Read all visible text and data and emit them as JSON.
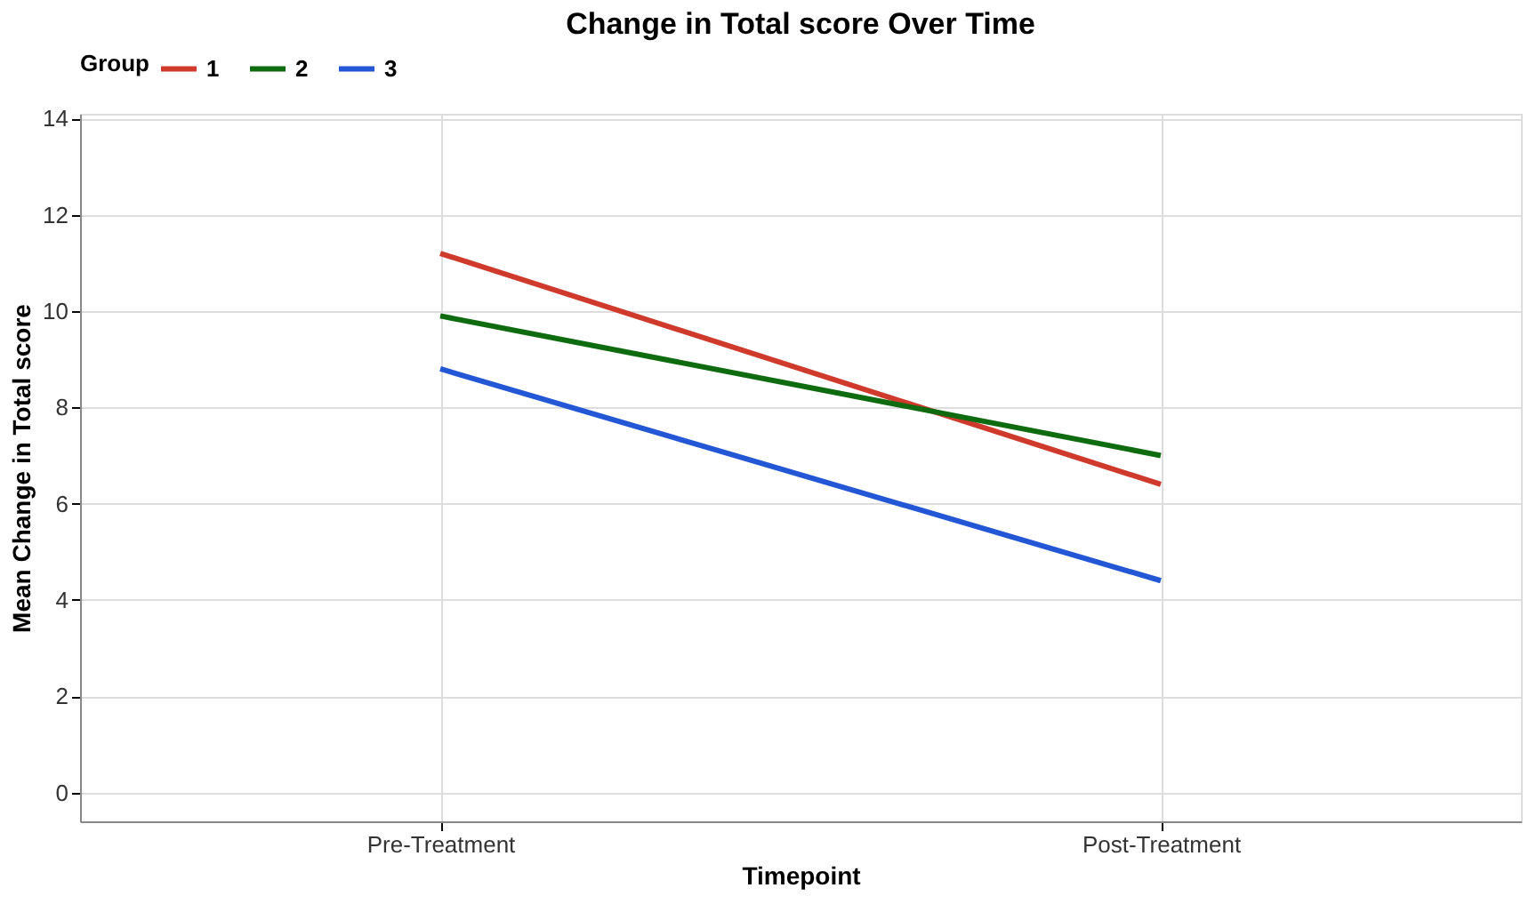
{
  "chart_data": {
    "type": "line",
    "title": "Change in Total score Over Time",
    "xlabel": "Timepoint",
    "ylabel": "Mean Change in Total score",
    "legend_title": "Group",
    "categories": [
      "Pre-Treatment",
      "Post-Treatment"
    ],
    "series": [
      {
        "name": "1",
        "color": "#d03a2c",
        "values": [
          11.2,
          6.4
        ]
      },
      {
        "name": "2",
        "color": "#0f6b0f",
        "values": [
          9.9,
          7.0
        ]
      },
      {
        "name": "3",
        "color": "#2457d6",
        "values": [
          8.8,
          4.4
        ]
      }
    ],
    "ylim": [
      -0.6,
      14.1
    ],
    "yticks": [
      0,
      2,
      4,
      6,
      8,
      10,
      12,
      14
    ],
    "grid": true,
    "legend": "top",
    "marker": "none",
    "line_style": "solid"
  }
}
